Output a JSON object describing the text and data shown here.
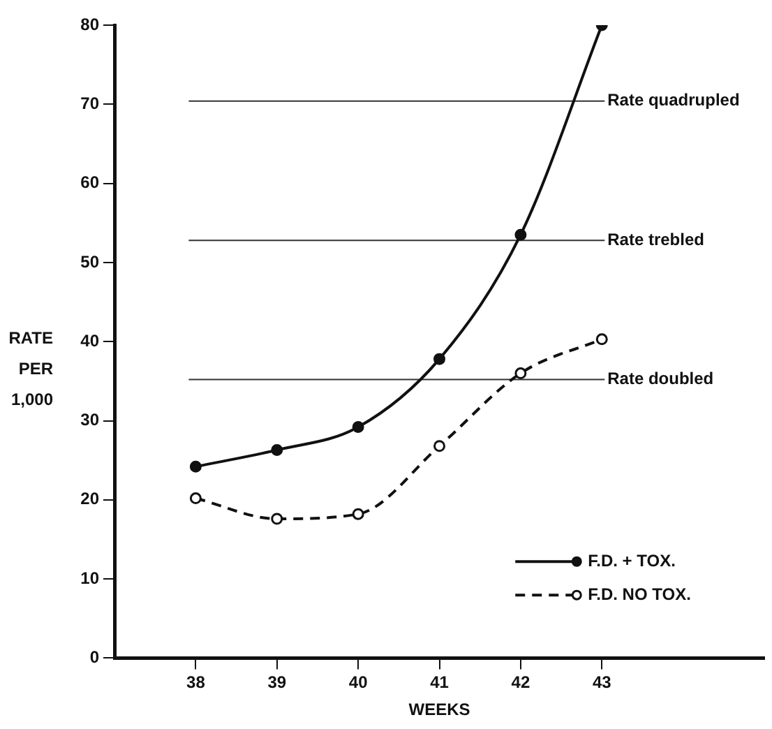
{
  "chart_data": {
    "type": "line",
    "xlabel": "WEEKS",
    "ylabel": "RATE PER 1,000",
    "x": [
      38,
      39,
      40,
      41,
      42,
      43
    ],
    "xlim": [
      37,
      45
    ],
    "xticks": [
      38,
      39,
      40,
      41,
      42,
      43
    ],
    "ylim": [
      0,
      80
    ],
    "yticks": [
      0,
      10,
      20,
      30,
      40,
      50,
      60,
      70,
      80
    ],
    "series": [
      {
        "name": "F.D. + TOX.",
        "color": "#111111",
        "line_style": "solid",
        "values": [
          24.2,
          26.3,
          29.2,
          37.8,
          53.5,
          80
        ]
      },
      {
        "name": "F.D. NO TOX.",
        "color": "#111111",
        "line_style": "dashed",
        "values": [
          20.2,
          17.6,
          18.2,
          26.8,
          36,
          40.3
        ]
      }
    ],
    "ref_lines": [
      {
        "axis": "y",
        "value": 70.4,
        "label": "Rate quadrupled",
        "color": "#333333"
      },
      {
        "axis": "y",
        "value": 52.8,
        "label": "Rate trebled",
        "color": "#333333"
      },
      {
        "axis": "y",
        "value": 35.2,
        "label": "Rate doubled",
        "color": "#333333"
      }
    ],
    "marker": "circle",
    "grid": false,
    "legend": "bottom right"
  }
}
